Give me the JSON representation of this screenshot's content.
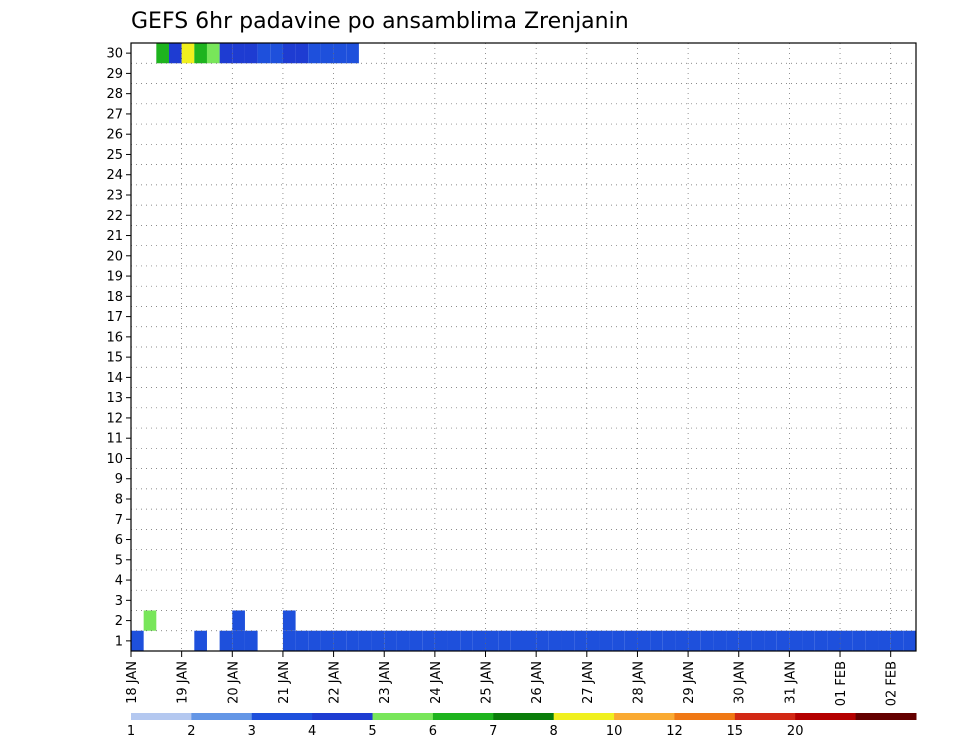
{
  "chart_data": {
    "type": "heatmap",
    "title": "GEFS 6hr padavine po ansamblima Zrenjanin",
    "xlabel": "",
    "ylabel": "",
    "x_ticks": [
      "18 JAN",
      "19 JAN",
      "20 JAN",
      "21 JAN",
      "22 JAN",
      "23 JAN",
      "24 JAN",
      "25 JAN",
      "26 JAN",
      "27 JAN",
      "28 JAN",
      "29 JAN",
      "30 JAN",
      "31 JAN",
      "01 FEB",
      "02 FEB"
    ],
    "y_ticks": [
      "1",
      "2",
      "3",
      "4",
      "5",
      "6",
      "7",
      "8",
      "9",
      "10",
      "11",
      "12",
      "13",
      "14",
      "15",
      "16",
      "17",
      "18",
      "19",
      "20",
      "21",
      "22",
      "23",
      "24",
      "25",
      "26",
      "27",
      "28",
      "29",
      "30"
    ],
    "time_step_hours": 6,
    "grid": true,
    "colorbar": {
      "labels": [
        "1",
        "2",
        "3",
        "4",
        "5",
        "6",
        "7",
        "8",
        "10",
        "12",
        "15",
        "20"
      ],
      "colors": [
        "#b4c8f0",
        "#6496e6",
        "#1e50dc",
        "#1e3cd2",
        "#78e65a",
        "#1eb41e",
        "#0a7d0a",
        "#f0f01e",
        "#faaa32",
        "#f07814",
        "#d22814",
        "#b40000",
        "#640000"
      ]
    },
    "cells": [
      [
        0,
        1,
        2
      ],
      [
        1,
        2,
        4
      ],
      [
        2,
        30,
        5
      ],
      [
        3,
        30,
        3
      ],
      [
        4,
        30,
        7
      ],
      [
        5,
        1,
        2
      ],
      [
        5,
        30,
        5
      ],
      [
        6,
        30,
        4
      ],
      [
        7,
        1,
        2
      ],
      [
        7,
        30,
        3
      ],
      [
        8,
        1,
        2
      ],
      [
        8,
        2,
        2
      ],
      [
        8,
        30,
        3
      ],
      [
        9,
        1,
        2
      ],
      [
        9,
        30,
        3
      ],
      [
        10,
        30,
        2
      ],
      [
        11,
        30,
        2
      ],
      [
        12,
        1,
        2
      ],
      [
        12,
        2,
        2
      ],
      [
        12,
        30,
        3
      ],
      [
        13,
        1,
        2
      ],
      [
        13,
        30,
        3
      ],
      [
        14,
        1,
        2
      ],
      [
        14,
        30,
        2
      ],
      [
        15,
        1,
        2
      ],
      [
        15,
        30,
        2
      ],
      [
        16,
        1,
        2
      ],
      [
        16,
        30,
        2
      ],
      [
        17,
        1,
        2
      ],
      [
        17,
        30,
        2
      ],
      [
        18,
        1,
        2
      ],
      [
        19,
        1,
        2
      ],
      [
        20,
        1,
        2
      ],
      [
        21,
        1,
        2
      ],
      [
        22,
        1,
        2
      ],
      [
        23,
        1,
        2
      ],
      [
        24,
        1,
        2
      ],
      [
        25,
        1,
        2
      ],
      [
        26,
        1,
        2
      ],
      [
        27,
        1,
        2
      ],
      [
        28,
        1,
        2
      ],
      [
        29,
        1,
        2
      ],
      [
        30,
        1,
        2
      ],
      [
        31,
        1,
        2
      ],
      [
        32,
        1,
        2
      ],
      [
        33,
        1,
        2
      ],
      [
        34,
        1,
        2
      ],
      [
        35,
        1,
        2
      ],
      [
        36,
        1,
        2
      ],
      [
        37,
        1,
        2
      ],
      [
        38,
        1,
        2
      ],
      [
        39,
        1,
        2
      ],
      [
        40,
        1,
        2
      ],
      [
        41,
        1,
        2
      ],
      [
        42,
        1,
        2
      ],
      [
        43,
        1,
        2
      ],
      [
        44,
        1,
        2
      ],
      [
        45,
        1,
        2
      ],
      [
        46,
        1,
        2
      ],
      [
        47,
        1,
        2
      ],
      [
        48,
        1,
        2
      ],
      [
        49,
        1,
        2
      ],
      [
        50,
        1,
        2
      ],
      [
        51,
        1,
        2
      ],
      [
        52,
        1,
        2
      ],
      [
        53,
        1,
        2
      ],
      [
        54,
        1,
        2
      ],
      [
        55,
        1,
        2
      ],
      [
        56,
        1,
        2
      ],
      [
        57,
        1,
        2
      ],
      [
        58,
        1,
        2
      ],
      [
        59,
        1,
        2
      ],
      [
        60,
        1,
        2
      ],
      [
        61,
        1,
        2
      ]
    ]
  }
}
